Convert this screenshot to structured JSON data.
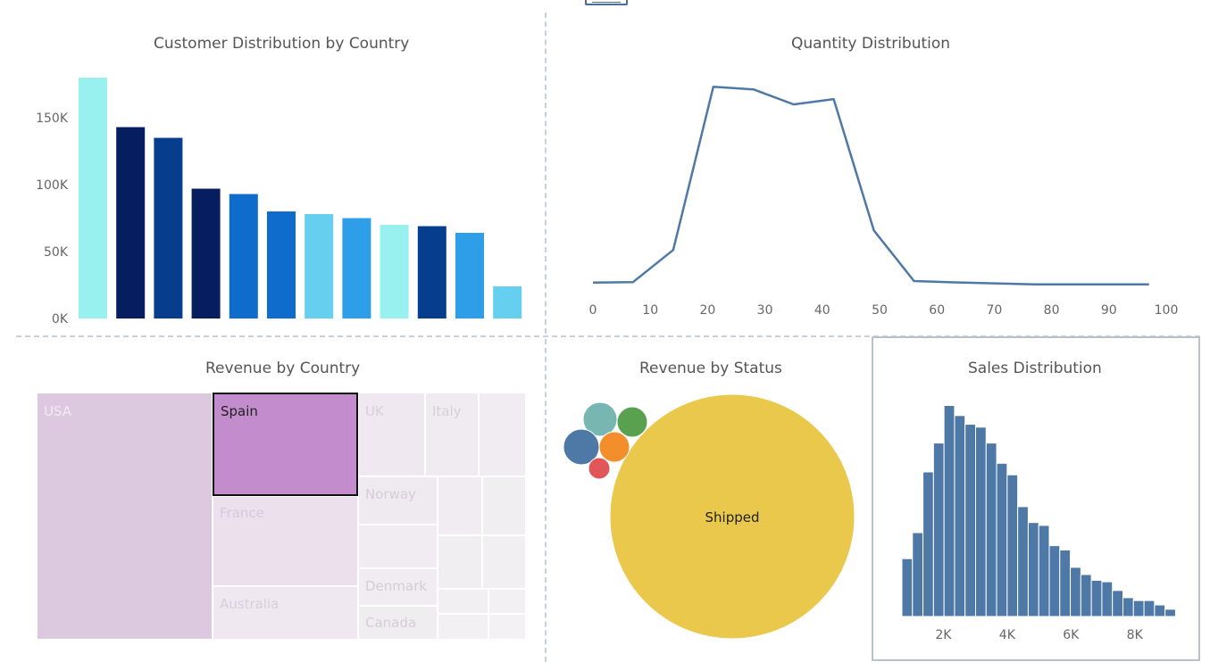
{
  "panels": {
    "customer": {
      "title": "Customer Distribution by Country"
    },
    "quantity": {
      "title": "Quantity Distribution"
    },
    "revenue_country": {
      "title": "Revenue by Country"
    },
    "revenue_status": {
      "title": "Revenue by Status"
    },
    "sales": {
      "title": "Sales Distribution"
    }
  },
  "chart_data": [
    {
      "type": "bar",
      "title": "Customer Distribution by Country",
      "y_ticks": [
        "0K",
        "50K",
        "100K",
        "150K"
      ],
      "ylim": [
        0,
        180000
      ],
      "values": [
        180000,
        143000,
        135000,
        97000,
        93000,
        80000,
        78000,
        75000,
        70000,
        69000,
        64000,
        24000
      ],
      "colors": [
        "#98f0ef",
        "#061e5f",
        "#063d8c",
        "#061e5f",
        "#0f6ccd",
        "#0f6ccd",
        "#66ceee",
        "#2f9ee8",
        "#98f0ef",
        "#063d8c",
        "#2f9ee8",
        "#66ceee"
      ]
    },
    {
      "type": "line",
      "title": "Quantity Distribution",
      "x_ticks": [
        "0",
        "10",
        "20",
        "30",
        "40",
        "50",
        "60",
        "70",
        "80",
        "90",
        "100"
      ],
      "xlim": [
        0,
        100
      ],
      "x": [
        0,
        7,
        14,
        21,
        28,
        35,
        42,
        49,
        56,
        63,
        70,
        77,
        84,
        91,
        97
      ],
      "y": [
        1.1,
        1.3,
        13.5,
        75.5,
        74.5,
        68.8,
        70.8,
        20.9,
        1.7,
        1.2,
        0.8,
        0.4,
        0.4,
        0.4,
        0.4
      ],
      "ylim": [
        0,
        80
      ],
      "color": "#4e79a7"
    },
    {
      "type": "treemap",
      "title": "Revenue by Country",
      "labels": [
        {
          "name": "USA"
        },
        {
          "name": "Spain"
        },
        {
          "name": "UK"
        },
        {
          "name": "Italy"
        },
        {
          "name": "France"
        },
        {
          "name": "Norway"
        },
        {
          "name": "Australia"
        },
        {
          "name": "Denmark"
        },
        {
          "name": "Canada"
        }
      ]
    },
    {
      "type": "bubble",
      "title": "Revenue by Status",
      "bubbles": [
        {
          "name": "Shipped",
          "color": "#e9c84b"
        },
        {
          "name": "",
          "color": "#76b7b2"
        },
        {
          "name": "",
          "color": "#59a14f"
        },
        {
          "name": "",
          "color": "#4e79a7"
        },
        {
          "name": "",
          "color": "#f28e2b"
        },
        {
          "name": "",
          "color": "#e15759"
        }
      ]
    },
    {
      "type": "bar",
      "title": "Sales Distribution",
      "x_ticks": [
        "2K",
        "4K",
        "6K",
        "8K"
      ],
      "xlim": [
        700,
        9100
      ],
      "bin_start": 700,
      "bin_width": 330,
      "values": [
        40,
        58,
        100,
        120,
        146,
        139,
        133,
        131,
        120,
        106,
        98,
        76,
        65,
        63,
        49,
        46,
        34,
        29,
        25,
        24,
        18,
        13,
        11,
        11,
        8,
        5
      ],
      "ylim": [
        0,
        150
      ],
      "color": "#4e79a7"
    }
  ]
}
